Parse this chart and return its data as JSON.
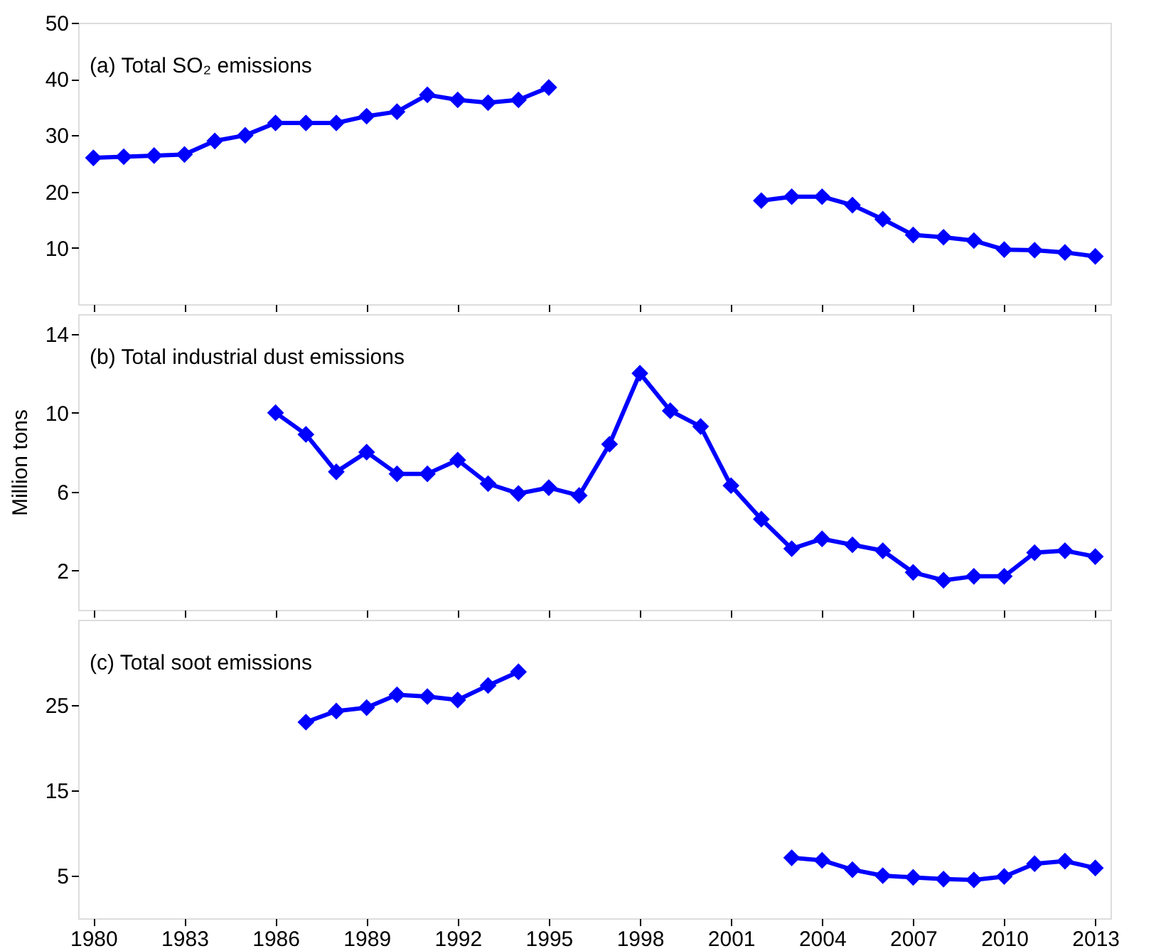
{
  "chart_data": [
    {
      "type": "line",
      "annotations": [
        "(a) Total SO₂ emissions"
      ],
      "x": [
        1980,
        1981,
        1982,
        1983,
        1984,
        1985,
        1986,
        1987,
        1988,
        1989,
        1990,
        1991,
        1992,
        1993,
        1994,
        1995,
        1996,
        1997,
        1998,
        1999,
        2000,
        2001,
        2002,
        2003,
        2004,
        2005,
        2006,
        2007,
        2008,
        2009,
        2010,
        2011,
        2012,
        2013
      ],
      "series": [
        {
          "color": "#0000ff",
          "values": [
            26,
            26.2,
            26.4,
            26.6,
            29,
            30,
            32.2,
            32.2,
            32.2,
            33.4,
            34.2,
            37.2,
            36.3,
            35.8,
            36.3,
            38.5,
            null,
            null,
            null,
            null,
            null,
            null,
            18.4,
            19.1,
            19.1,
            17.6,
            15.1,
            12.3,
            11.9,
            11.3,
            9.7,
            9.6,
            9.2,
            8.5
          ]
        }
      ],
      "marker": "diamond",
      "line_style": "solid",
      "grid": false,
      "xlim": [
        1979.5,
        2013.5
      ],
      "xticks": [
        1980,
        1983,
        1986,
        1989,
        1992,
        1995,
        1998,
        2001,
        2004,
        2007,
        2010,
        2013
      ],
      "ylim": [
        0,
        50
      ],
      "yticks": [
        10,
        20,
        30,
        40,
        50
      ],
      "tick_labels": "y"
    },
    {
      "type": "line",
      "annotations": [
        "(b) Total industrial dust emissions"
      ],
      "ylabel": "Million tons",
      "x": [
        1986,
        1987,
        1988,
        1989,
        1990,
        1991,
        1992,
        1993,
        1994,
        1995,
        1996,
        1997,
        1998,
        1999,
        2000,
        2001,
        2002,
        2003,
        2004,
        2005,
        2006,
        2007,
        2008,
        2009,
        2010,
        2011,
        2012,
        2013
      ],
      "series": [
        {
          "color": "#0000ff",
          "values": [
            10,
            8.9,
            7.0,
            8.0,
            6.9,
            6.9,
            7.6,
            6.4,
            5.9,
            6.2,
            5.8,
            8.4,
            12,
            10.1,
            9.3,
            6.3,
            4.6,
            3.1,
            3.6,
            3.3,
            3.0,
            1.9,
            1.5,
            1.7,
            1.7,
            2.9,
            3.0,
            2.7
          ]
        }
      ],
      "marker": "diamond",
      "line_style": "solid",
      "grid": false,
      "xlim": [
        1979.5,
        2013.5
      ],
      "xticks": [
        1980,
        1983,
        1986,
        1989,
        1992,
        1995,
        1998,
        2001,
        2004,
        2007,
        2010,
        2013
      ],
      "ylim": [
        0,
        15
      ],
      "yticks": [
        2,
        6,
        10,
        14
      ],
      "tick_labels": "y"
    },
    {
      "type": "line",
      "annotations": [
        "(c) Total soot emissions"
      ],
      "x": [
        1987,
        1988,
        1989,
        1990,
        1991,
        1992,
        1993,
        1994,
        1995,
        1996,
        1997,
        1998,
        1999,
        2000,
        2001,
        2002,
        2003,
        2004,
        2005,
        2006,
        2007,
        2008,
        2009,
        2010,
        2011,
        2012,
        2013
      ],
      "series": [
        {
          "color": "#0000ff",
          "values": [
            23,
            24.3,
            24.7,
            26.2,
            26.0,
            25.6,
            27.3,
            28.9,
            null,
            null,
            null,
            null,
            null,
            null,
            null,
            null,
            7.1,
            6.8,
            5.7,
            5.0,
            4.8,
            4.6,
            4.5,
            4.9,
            6.4,
            6.7,
            5.9
          ]
        }
      ],
      "marker": "diamond",
      "line_style": "solid",
      "grid": false,
      "xlim": [
        1979.5,
        2013.5
      ],
      "xticks": [
        1980,
        1983,
        1986,
        1989,
        1992,
        1995,
        1998,
        2001,
        2004,
        2007,
        2010,
        2013
      ],
      "ylim": [
        0,
        35
      ],
      "yticks": [
        5,
        15,
        25
      ]
    }
  ]
}
